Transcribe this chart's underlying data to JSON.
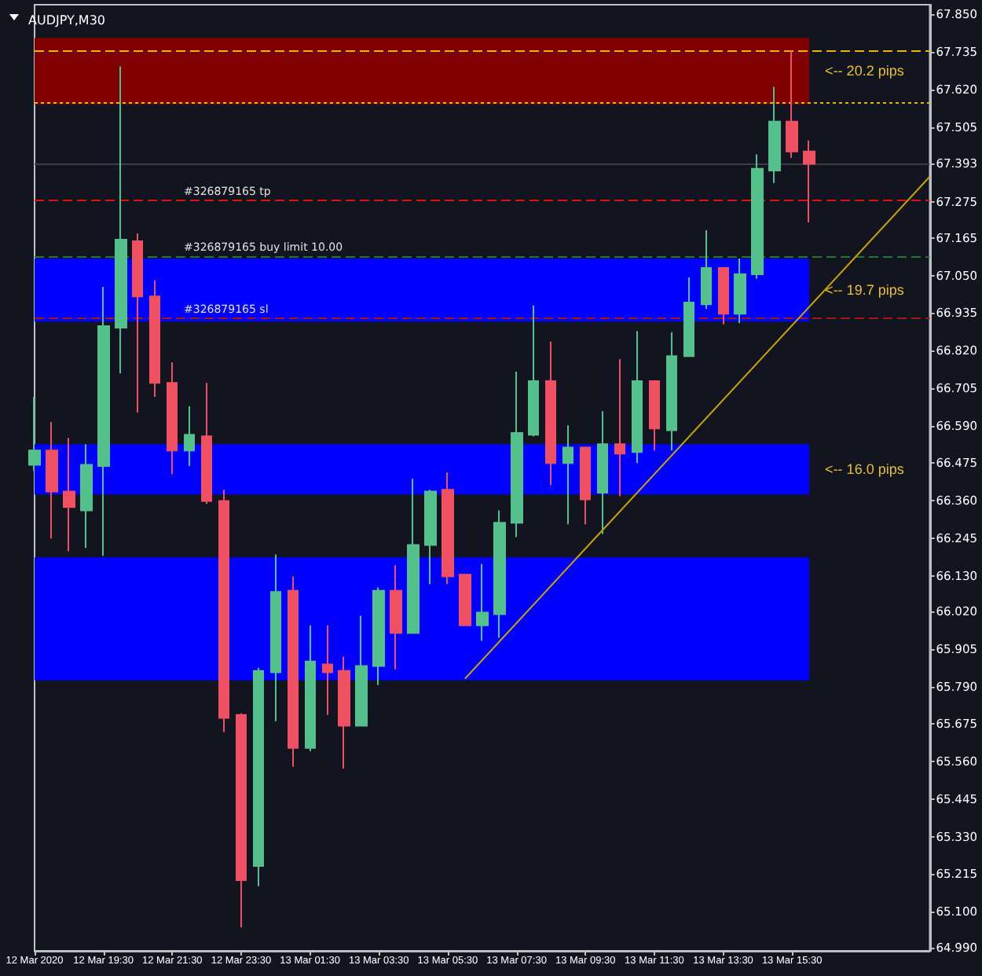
{
  "chart_data": {
    "type": "candlestick",
    "title": "AUDJPY,M30",
    "x": [
      "2020-03-12T17:30",
      "2020-03-12T18:00",
      "2020-03-12T18:30",
      "2020-03-12T19:00",
      "2020-03-12T19:30",
      "2020-03-12T20:00",
      "2020-03-12T20:30",
      "2020-03-12T21:00",
      "2020-03-12T21:30",
      "2020-03-12T22:00",
      "2020-03-12T22:30",
      "2020-03-12T23:00",
      "2020-03-12T23:30",
      "2020-03-13T00:00",
      "2020-03-13T00:30",
      "2020-03-13T01:00",
      "2020-03-13T01:30",
      "2020-03-13T02:00",
      "2020-03-13T02:30",
      "2020-03-13T03:00",
      "2020-03-13T03:30",
      "2020-03-13T04:00",
      "2020-03-13T04:30",
      "2020-03-13T05:00",
      "2020-03-13T05:30",
      "2020-03-13T06:00",
      "2020-03-13T06:30",
      "2020-03-13T07:00",
      "2020-03-13T07:30",
      "2020-03-13T08:00",
      "2020-03-13T08:30",
      "2020-03-13T09:00",
      "2020-03-13T09:30",
      "2020-03-13T10:00",
      "2020-03-13T10:30",
      "2020-03-13T11:00",
      "2020-03-13T11:30",
      "2020-03-13T12:00",
      "2020-03-13T12:30",
      "2020-03-13T13:00",
      "2020-03-13T13:30",
      "2020-03-13T14:00",
      "2020-03-13T14:30",
      "2020-03-13T15:00",
      "2020-03-13T15:30",
      "2020-03-13T16:00"
    ],
    "ohlc": [
      [
        66.47,
        66.678,
        66.451,
        66.514
      ],
      [
        66.514,
        66.601,
        66.244,
        66.388
      ],
      [
        66.388,
        66.552,
        66.205,
        66.34
      ],
      [
        66.33,
        66.533,
        66.215,
        66.47
      ],
      [
        66.466,
        67.015,
        66.191,
        66.895
      ],
      [
        66.89,
        67.691,
        66.75,
        67.16
      ],
      [
        67.155,
        67.179,
        66.63,
        66.986
      ],
      [
        66.986,
        67.035,
        66.678,
        66.721
      ],
      [
        66.721,
        66.784,
        66.441,
        66.514
      ],
      [
        66.514,
        66.649,
        66.466,
        66.562
      ],
      [
        66.557,
        66.721,
        66.35,
        66.359
      ],
      [
        66.359,
        66.393,
        65.65,
        65.694
      ],
      [
        65.703,
        65.708,
        65.052,
        65.197
      ],
      [
        65.24,
        65.848,
        65.178,
        65.838
      ],
      [
        65.834,
        66.195,
        65.684,
        66.08
      ],
      [
        66.084,
        66.128,
        65.544,
        65.602
      ],
      [
        65.602,
        65.978,
        65.592,
        65.867
      ],
      [
        65.858,
        65.978,
        65.703,
        65.834
      ],
      [
        65.838,
        65.882,
        65.539,
        65.67
      ],
      [
        65.67,
        66.007,
        65.67,
        65.853
      ],
      [
        65.853,
        66.094,
        65.795,
        66.084
      ],
      [
        66.084,
        66.162,
        65.843,
        65.954
      ],
      [
        65.954,
        66.427,
        65.954,
        66.224
      ],
      [
        66.224,
        66.393,
        66.104,
        66.388
      ],
      [
        66.393,
        66.446,
        66.104,
        66.128
      ],
      [
        66.133,
        66.133,
        65.978,
        65.978
      ],
      [
        65.978,
        66.166,
        65.93,
        66.017
      ],
      [
        66.012,
        66.33,
        65.94,
        66.292
      ],
      [
        66.292,
        66.755,
        66.248,
        66.567
      ],
      [
        66.562,
        66.958,
        66.557,
        66.726
      ],
      [
        66.726,
        66.847,
        66.408,
        66.475
      ],
      [
        66.475,
        66.591,
        66.287,
        66.523
      ],
      [
        66.523,
        66.523,
        66.287,
        66.364
      ],
      [
        66.384,
        66.634,
        66.258,
        66.533
      ],
      [
        66.533,
        66.794,
        66.374,
        66.504
      ],
      [
        66.509,
        66.88,
        66.475,
        66.726
      ],
      [
        66.726,
        66.726,
        66.514,
        66.581
      ],
      [
        66.576,
        66.876,
        66.514,
        66.803
      ],
      [
        66.803,
        67.044,
        66.803,
        66.967
      ],
      [
        66.962,
        67.189,
        66.948,
        67.073
      ],
      [
        67.073,
        67.073,
        66.9,
        66.933
      ],
      [
        66.933,
        67.102,
        66.904,
        67.054
      ],
      [
        67.054,
        67.421,
        67.04,
        67.377
      ],
      [
        67.372,
        67.628,
        67.334,
        67.522
      ],
      [
        67.522,
        67.739,
        67.411,
        67.43
      ],
      [
        67.43,
        67.464,
        67.213,
        67.392
      ]
    ],
    "colors": [
      "#54c08c",
      "#ef5162",
      "#ef5162",
      "#54c08c",
      "#54c08c",
      "#54c08c",
      "#ef5162",
      "#ef5162",
      "#ef5162",
      "#54c08c",
      "#ef5162",
      "#ef5162",
      "#ef5162",
      "#54c08c",
      "#54c08c",
      "#ef5162",
      "#54c08c",
      "#ef5162",
      "#ef5162",
      "#54c08c",
      "#54c08c",
      "#ef5162",
      "#54c08c",
      "#54c08c",
      "#ef5162",
      "#ef5162",
      "#54c08c",
      "#54c08c",
      "#54c08c",
      "#54c08c",
      "#ef5162",
      "#54c08c",
      "#ef5162",
      "#54c08c",
      "#ef5162",
      "#54c08c",
      "#ef5162",
      "#54c08c",
      "#54c08c",
      "#54c08c",
      "#ef5162",
      "#54c08c",
      "#54c08c",
      "#54c08c",
      "#ef5162",
      "#ef5162"
    ],
    "series": [
      {
        "type": "line",
        "color": "#c9a400",
        "x": [
          "2020-03-13T06:00",
          "2020-03-13T19:30"
        ],
        "values": [
          65.814,
          67.353
        ]
      }
    ],
    "xlim": [
      "2020-03-12T17:30",
      "2020-03-13T19:30"
    ],
    "xticks": [
      {
        "value": "2020-03-12T17:30",
        "label": "12 Mar 2020"
      },
      {
        "value": "2020-03-12T19:30",
        "label": "12 Mar 19:30"
      },
      {
        "value": "2020-03-12T21:30",
        "label": "12 Mar 21:30"
      },
      {
        "value": "2020-03-12T23:30",
        "label": "12 Mar 23:30"
      },
      {
        "value": "2020-03-13T01:30",
        "label": "13 Mar 01:30"
      },
      {
        "value": "2020-03-13T03:30",
        "label": "13 Mar 03:30"
      },
      {
        "value": "2020-03-13T05:30",
        "label": "13 Mar 05:30"
      },
      {
        "value": "2020-03-13T07:30",
        "label": "13 Mar 07:30"
      },
      {
        "value": "2020-03-13T09:30",
        "label": "13 Mar 09:30"
      },
      {
        "value": "2020-03-13T11:30",
        "label": "13 Mar 11:30"
      },
      {
        "value": "2020-03-13T13:30",
        "label": "13 Mar 13:30"
      },
      {
        "value": "2020-03-13T15:30",
        "label": "13 Mar 15:30"
      }
    ],
    "ylim": [
      64.98,
      67.88
    ],
    "yticks": [
      {
        "value": 64.99,
        "label": "64.990"
      },
      {
        "value": 65.1,
        "label": "65.100"
      },
      65.215,
      {
        "value": 65.33,
        "label": "65.330"
      },
      65.445,
      {
        "value": 65.56,
        "label": "65.560"
      },
      65.675,
      {
        "value": 65.79,
        "label": "65.790"
      },
      65.905,
      {
        "value": 66.02,
        "label": "66.020"
      },
      {
        "value": 66.13,
        "label": "66.130"
      },
      66.245,
      {
        "value": 66.36,
        "label": "66.360"
      },
      66.475,
      {
        "value": 66.59,
        "label": "66.590"
      },
      66.705,
      {
        "value": 66.82,
        "label": "66.820"
      },
      66.935,
      {
        "value": 67.05,
        "label": "67.050"
      },
      67.165,
      67.275,
      67.393,
      67.505,
      {
        "value": 67.62,
        "label": "67.620"
      },
      67.735,
      {
        "value": 67.85,
        "label": "67.850"
      }
    ],
    "bands": [
      {
        "axis": "y",
        "from": 67.575,
        "to": 67.778,
        "label": "<-- 20.2 pips",
        "color": "#800000"
      },
      {
        "axis": "y",
        "from": 66.909,
        "to": 67.102,
        "label": "<-- 19.7 pips",
        "color": "#0000ff"
      },
      {
        "axis": "y",
        "from": 66.379,
        "to": 66.533,
        "label": "<-- 16.0 pips",
        "color": "#0000ff"
      },
      {
        "axis": "y",
        "from": 65.809,
        "to": 66.186,
        "color": "#0000ff"
      }
    ],
    "ref_lines": [
      {
        "axis": "y",
        "value": 67.739,
        "color": "#e8b800",
        "line_style": "dashed"
      },
      {
        "axis": "y",
        "value": 67.575,
        "color": "#e8b800",
        "line_style": "dotted"
      },
      {
        "axis": "y",
        "value": 67.393,
        "color": "#3a3d48",
        "line_style": "solid"
      },
      {
        "axis": "y",
        "value": 67.281,
        "label": "#326879165 tp",
        "color": "#e01010",
        "line_style": "dashed"
      },
      {
        "axis": "y",
        "value": 67.112,
        "label": "#326879165 buy limit 10.00",
        "color": "#1f7a2a",
        "line_style": "dashed"
      },
      {
        "axis": "y",
        "value": 66.919,
        "label": "#326879165 sl",
        "color": "#a01818",
        "line_style": "dashed"
      }
    ],
    "grid": false
  }
}
